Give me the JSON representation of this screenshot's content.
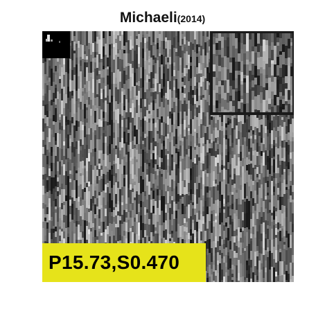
{
  "title": {
    "name": "Michaeli",
    "year": "(2014)"
  },
  "metric": {
    "label": "P15.73,S0.470"
  },
  "colors": {
    "background": "#ffffff",
    "metric_bg": "#e6e31a",
    "frame": "#1a1a1a",
    "kernel_bg": "#000000"
  }
}
